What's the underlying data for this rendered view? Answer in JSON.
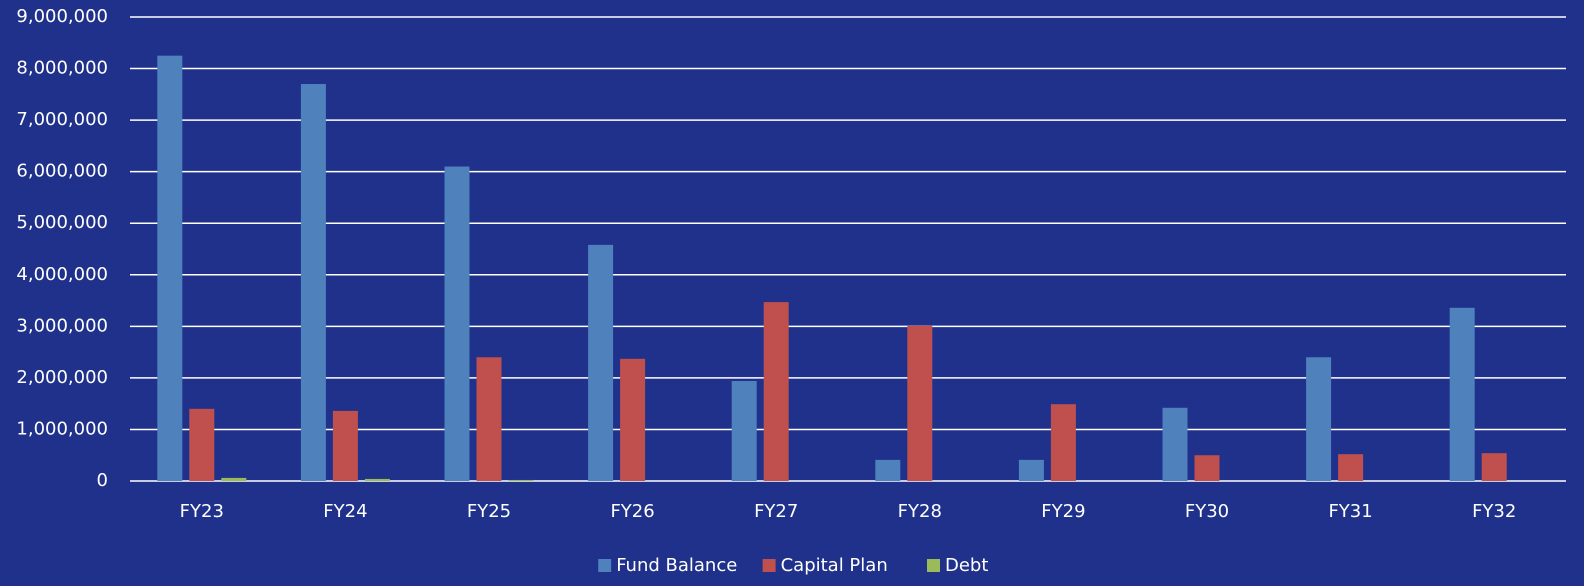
{
  "chart_data": {
    "type": "bar",
    "categories": [
      "FY23",
      "FY24",
      "FY25",
      "FY26",
      "FY27",
      "FY28",
      "FY29",
      "FY30",
      "FY31",
      "FY32"
    ],
    "series": [
      {
        "name": "Fund Balance",
        "color": "#4f81bd",
        "values": [
          8250000,
          7700000,
          6100000,
          4580000,
          1940000,
          410000,
          410000,
          1420000,
          2400000,
          3360000
        ]
      },
      {
        "name": "Capital Plan",
        "color": "#c0504d",
        "values": [
          1400000,
          1360000,
          2400000,
          2370000,
          3470000,
          3010000,
          1490000,
          500000,
          520000,
          540000
        ]
      },
      {
        "name": "Debt",
        "color": "#9bbb59",
        "values": [
          60000,
          40000,
          20000,
          0,
          0,
          0,
          0,
          0,
          0,
          0
        ]
      }
    ],
    "ylim": [
      0,
      9000000
    ],
    "yticks": [
      0,
      {
        "value": 1000000,
        "label": "1,000,000"
      },
      {
        "value": 2000000,
        "label": "2,000,000"
      },
      {
        "value": 3000000,
        "label": "3,000,000"
      },
      {
        "value": 4000000,
        "label": "4,000,000"
      },
      {
        "value": 5000000,
        "label": "5,000,000"
      },
      {
        "value": 6000000,
        "label": "6,000,000"
      },
      {
        "value": 7000000,
        "label": "7,000,000"
      },
      {
        "value": 8000000,
        "label": "8,000,000"
      },
      {
        "value": 9000000,
        "label": "9,000,000"
      }
    ],
    "grid": true,
    "legend": "bottom"
  }
}
